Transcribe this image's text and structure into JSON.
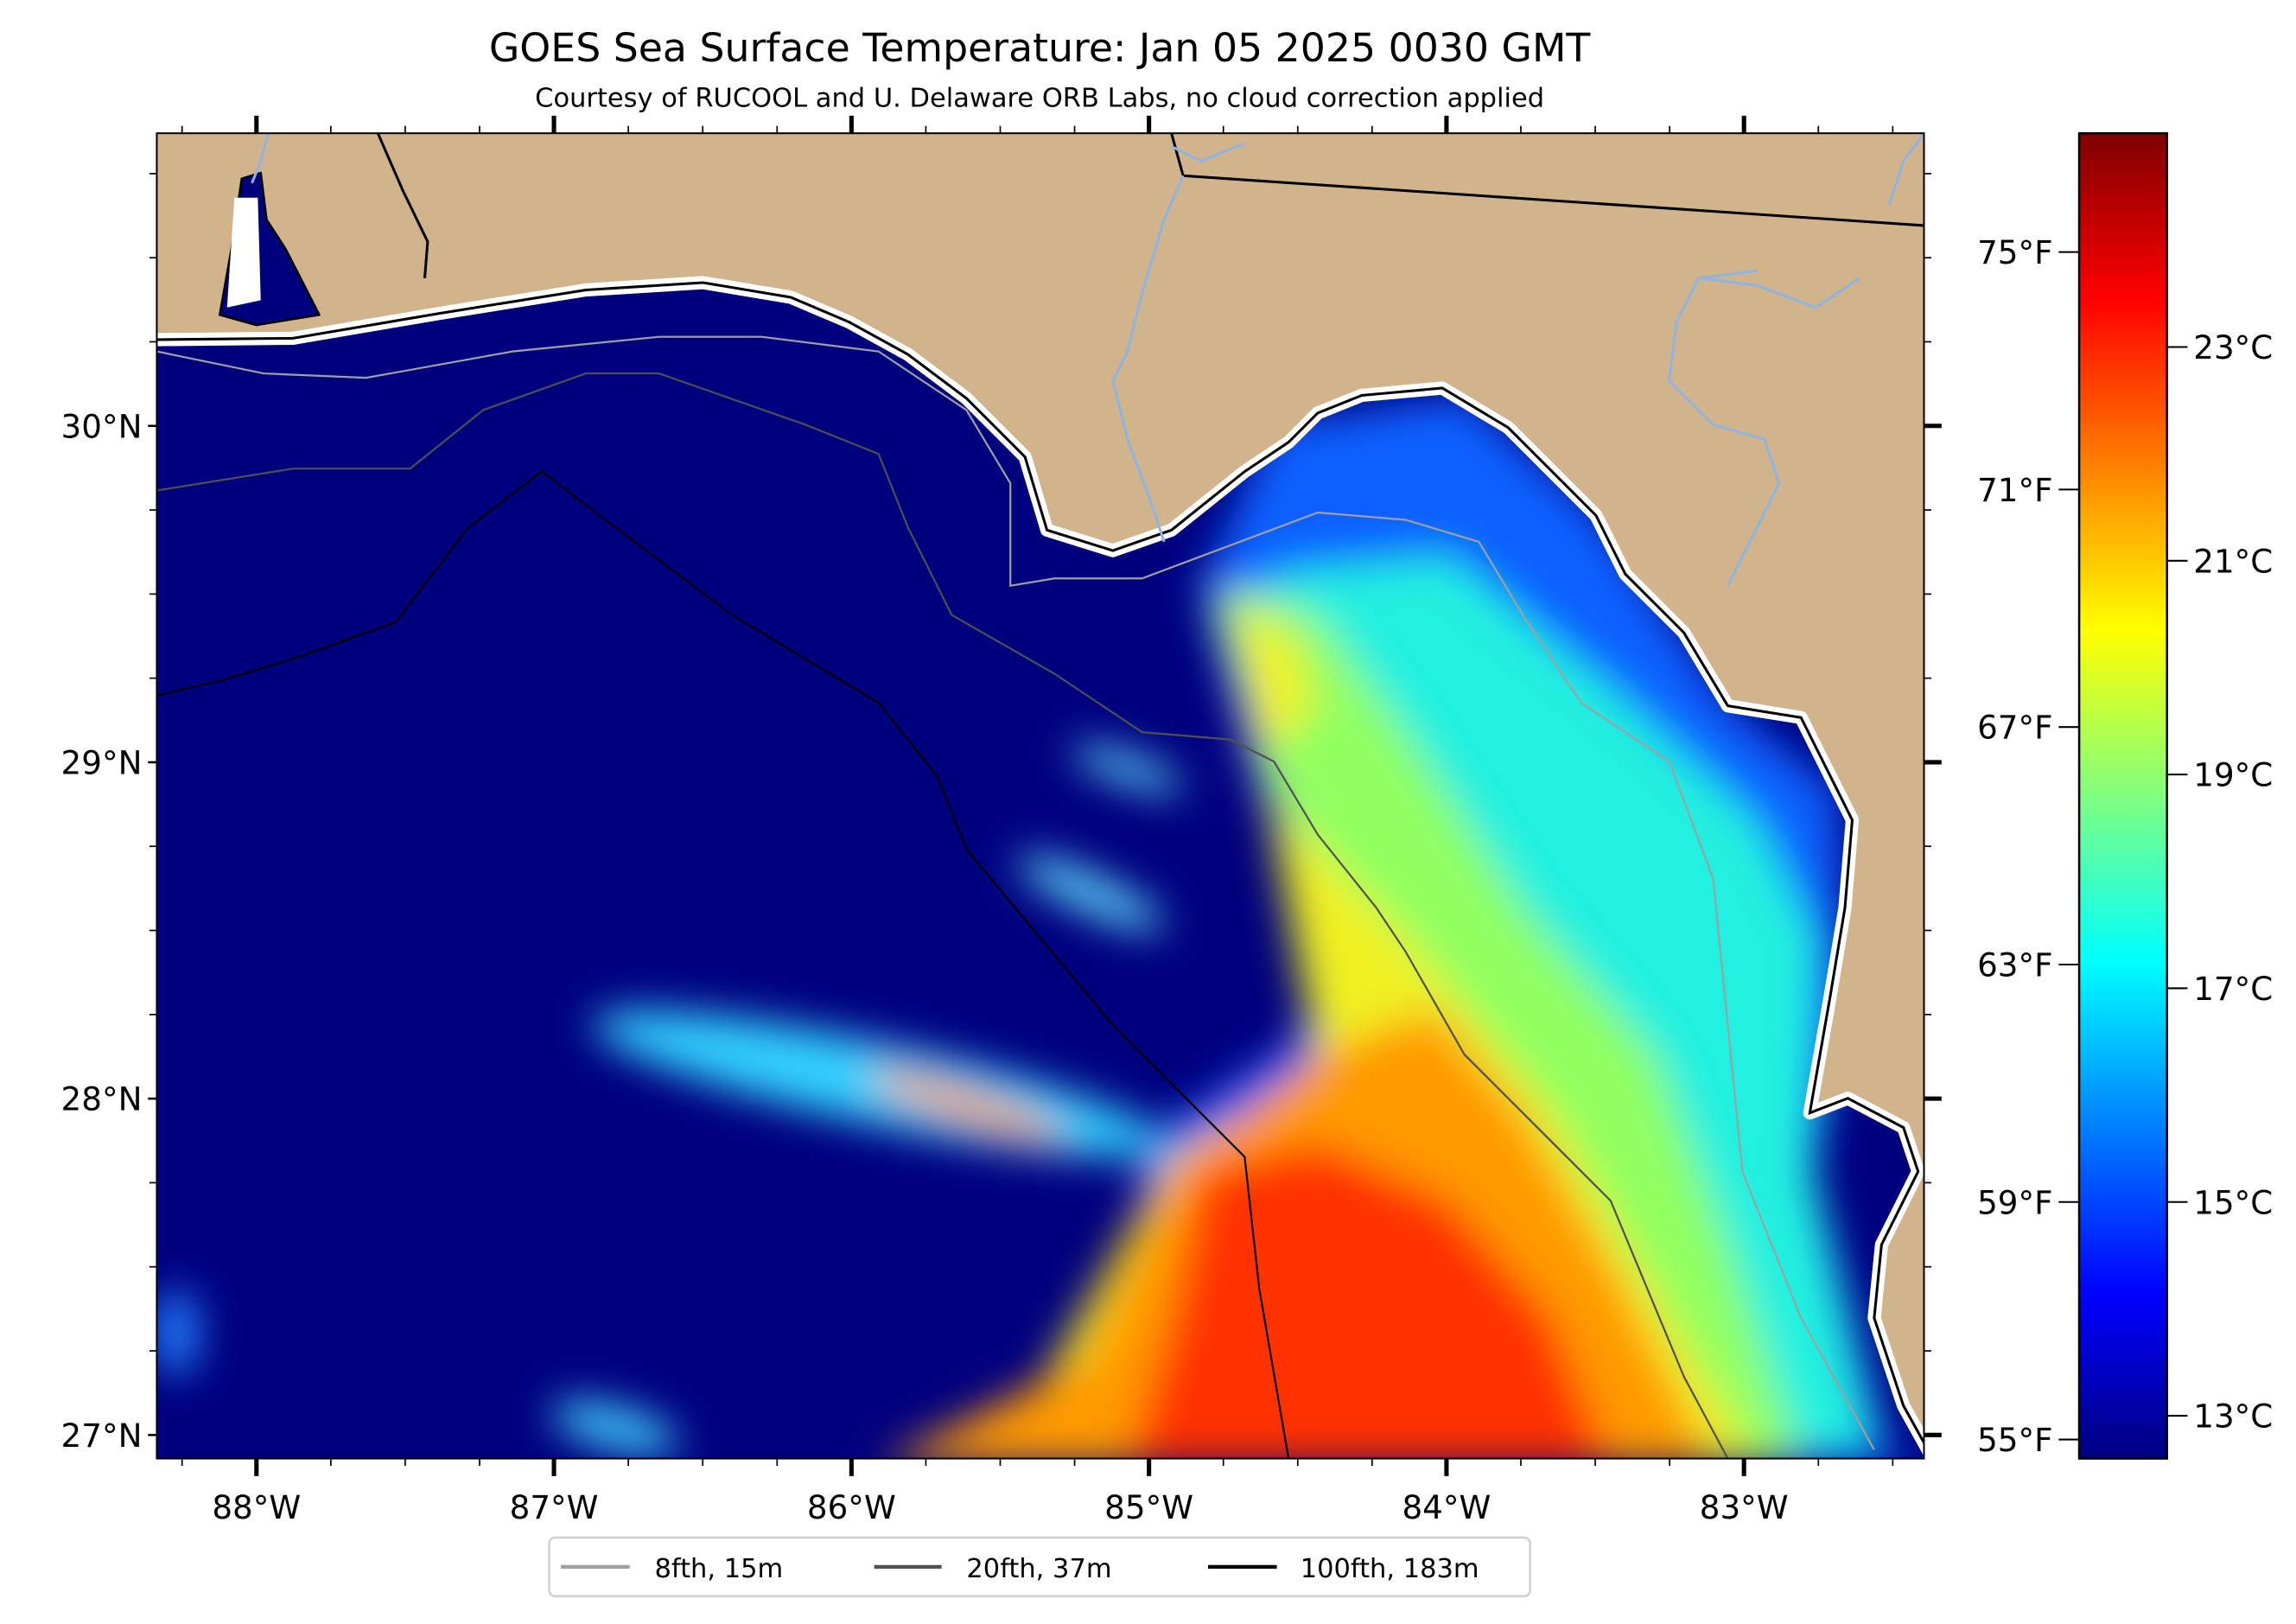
{
  "title": "GOES Sea Surface Temperature: Jan 05 2025 0030 GMT",
  "subtitle": "Courtesy of RUCOOL and U. Delaware ORB Labs, no cloud correction applied",
  "map": {
    "lon_range": [
      -88.335,
      -82.395
    ],
    "lat_range": [
      26.93,
      30.87
    ],
    "lon_ticks": [
      {
        "value": -88,
        "label": "88°W"
      },
      {
        "value": -87,
        "label": "87°W"
      },
      {
        "value": -86,
        "label": "86°W"
      },
      {
        "value": -85,
        "label": "85°W"
      },
      {
        "value": -84,
        "label": "84°W"
      },
      {
        "value": -83,
        "label": "83°W"
      }
    ],
    "lat_ticks": [
      {
        "value": 30,
        "label": "30°N"
      },
      {
        "value": 29,
        "label": "29°N"
      },
      {
        "value": 28,
        "label": "28°N"
      },
      {
        "value": 27,
        "label": "27°N"
      }
    ],
    "minor_tick_step_deg": 0.25,
    "colors": {
      "land": "#d2b48c",
      "ocean_cold": "#00007f",
      "coast": "#000000",
      "river": "#8fb4e0",
      "missing": "#ffffff"
    }
  },
  "colorbar": {
    "colormap": "jet",
    "range_c": [
      12.6,
      25.0
    ],
    "celsius_ticks": [
      {
        "value": 23,
        "label": "23°C"
      },
      {
        "value": 21,
        "label": "21°C"
      },
      {
        "value": 19,
        "label": "19°C"
      },
      {
        "value": 17,
        "label": "17°C"
      },
      {
        "value": 15,
        "label": "15°C"
      },
      {
        "value": 13,
        "label": "13°C"
      }
    ],
    "fahrenheit_ticks": [
      {
        "value": 75,
        "label": "75°F"
      },
      {
        "value": 71,
        "label": "71°F"
      },
      {
        "value": 67,
        "label": "67°F"
      },
      {
        "value": 63,
        "label": "63°F"
      },
      {
        "value": 59,
        "label": "59°F"
      },
      {
        "value": 55,
        "label": "55°F"
      }
    ]
  },
  "legend": {
    "items": [
      {
        "label": "8fth, 15m",
        "color": "#a0a0a0"
      },
      {
        "label": "20fth, 37m",
        "color": "#505050"
      },
      {
        "label": "100fth, 183m",
        "color": "#000000"
      }
    ]
  }
}
